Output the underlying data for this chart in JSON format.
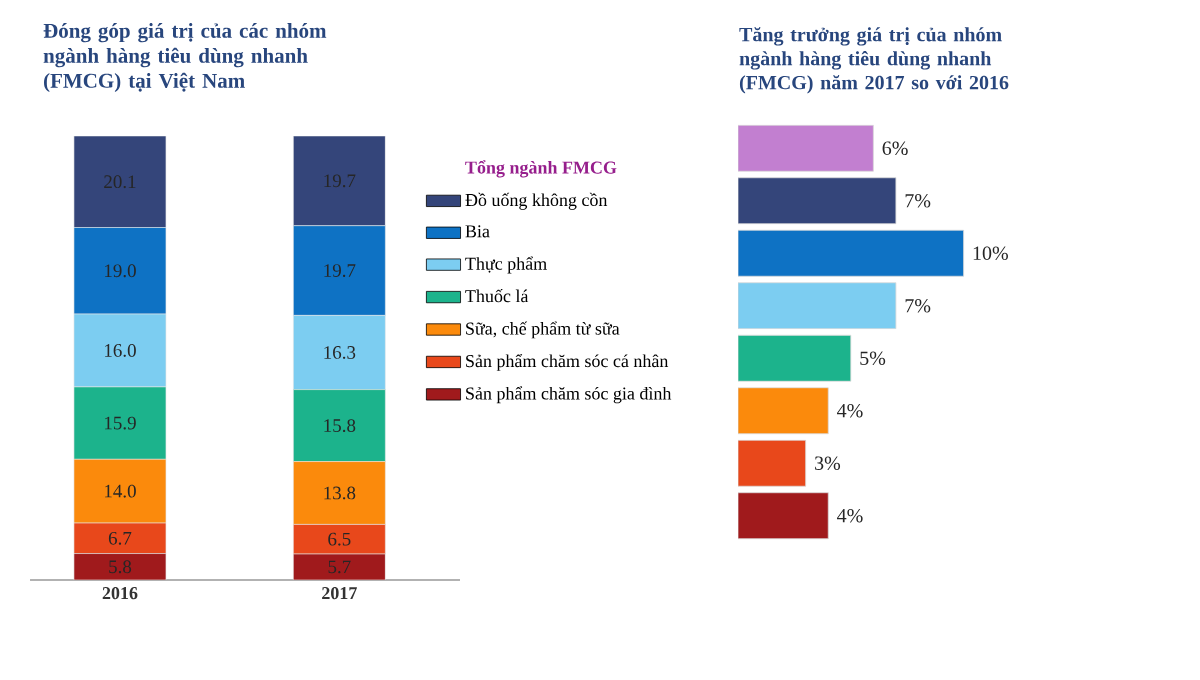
{
  "chart_data": [
    {
      "type": "bar",
      "title": "Đóng góp giá trị của các nhóm ngành hàng tiêu dùng nhanh (FMCG) tại Việt Nam",
      "stacked": true,
      "legend": "right",
      "legend_title": "Tổng ngành FMCG",
      "categories": [
        "2016",
        "2017"
      ],
      "series": [
        {
          "name": "Sản phẩm chăm sóc gia đình",
          "color": "#a01a1c",
          "values": [
            5.8,
            5.7
          ],
          "value_labels": [
            "5.8",
            "5.7"
          ]
        },
        {
          "name": "Sản phẩm chăm sóc cá nhân",
          "color": "#e8481b",
          "values": [
            6.7,
            6.5
          ],
          "value_labels": [
            "6.7",
            "6.5"
          ]
        },
        {
          "name": "Sữa, chế phẩm từ sữa",
          "color": "#fb8a0c",
          "values": [
            14.0,
            13.8
          ],
          "value_labels": [
            "14.0",
            "13.8"
          ]
        },
        {
          "name": "Thuốc lá",
          "color": "#1cb38c",
          "values": [
            15.9,
            15.8
          ],
          "value_labels": [
            "15.9",
            "15.8"
          ]
        },
        {
          "name": "Thực phẩm",
          "color": "#7ccdf1",
          "values": [
            16.0,
            16.3
          ],
          "value_labels": [
            "16.0",
            "16.3"
          ]
        },
        {
          "name": "Bia",
          "color": "#0e72c4",
          "values": [
            19.0,
            19.7
          ],
          "value_labels": [
            "19.0",
            "19.7"
          ]
        },
        {
          "name": "Đồ uống không cồn",
          "color": "#34457a",
          "values": [
            20.1,
            19.7
          ],
          "value_labels": [
            "20.1",
            "19.7"
          ]
        }
      ]
    },
    {
      "type": "bar",
      "orientation": "horizontal",
      "title": "Tăng trưởng giá trị của nhóm ngành hàng tiêu dùng nhanh (FMCG) năm 2017 so với 2016",
      "categories": [
        null,
        null,
        null,
        null,
        null,
        null,
        null,
        null
      ],
      "values": [
        6,
        7,
        10,
        7,
        5,
        4,
        3,
        4
      ],
      "value_labels": [
        "6%",
        "7%",
        "10%",
        "7%",
        "5%",
        "4%",
        "3%",
        "4%"
      ],
      "colors": [
        "#c27fd0",
        "#34457a",
        "#0e72c4",
        "#7ccdf1",
        "#1cb38c",
        "#fb8a0c",
        "#e8481b",
        "#a01a1c"
      ]
    }
  ]
}
